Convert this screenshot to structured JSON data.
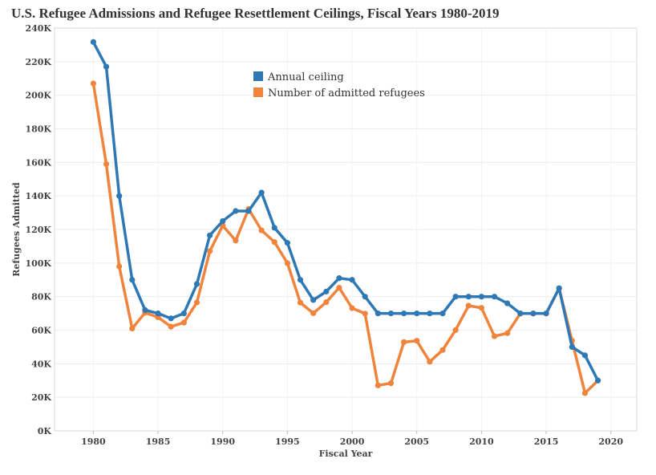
{
  "chart_data": {
    "type": "line",
    "title": "U.S. Refugee Admissions and Refugee Resettlement Ceilings, Fiscal Years 1980-2019",
    "xlabel": "Fiscal Year",
    "ylabel": "Refugees Admitted",
    "xlim": [
      1977,
      2022
    ],
    "ylim": [
      0,
      240000
    ],
    "x_ticks": [
      1980,
      1985,
      1990,
      1995,
      2000,
      2005,
      2010,
      2015,
      2020
    ],
    "x_tick_labels": [
      "1980",
      "1985",
      "1990",
      "1995",
      "2000",
      "2005",
      "2010",
      "2015",
      "2020"
    ],
    "y_ticks": [
      0,
      20000,
      40000,
      60000,
      80000,
      100000,
      120000,
      140000,
      160000,
      180000,
      200000,
      220000,
      240000
    ],
    "y_tick_labels": [
      "0K",
      "20K",
      "40K",
      "60K",
      "80K",
      "100K",
      "120K",
      "140K",
      "160K",
      "180K",
      "200K",
      "220K",
      "240K"
    ],
    "grid": true,
    "legend_position": "top-center",
    "x": [
      1980,
      1981,
      1982,
      1983,
      1984,
      1985,
      1986,
      1987,
      1988,
      1989,
      1990,
      1991,
      1992,
      1993,
      1994,
      1995,
      1996,
      1997,
      1998,
      1999,
      2000,
      2001,
      2002,
      2003,
      2004,
      2005,
      2006,
      2007,
      2008,
      2009,
      2010,
      2011,
      2012,
      2013,
      2014,
      2015,
      2016,
      2017,
      2018,
      2019
    ],
    "series": [
      {
        "name": "Annual ceiling",
        "color": "#2e78b5",
        "values": [
          231700,
          217000,
          140000,
          90000,
          72000,
          70000,
          67000,
          70000,
          87500,
          116500,
          125000,
          131000,
          131000,
          142000,
          121000,
          112000,
          90000,
          78000,
          83000,
          91000,
          90000,
          80000,
          70000,
          70000,
          70000,
          70000,
          70000,
          70000,
          80000,
          80000,
          80000,
          80000,
          76000,
          70000,
          70000,
          70000,
          85000,
          50000,
          45000,
          30000
        ]
      },
      {
        "name": "Number of admitted refugees",
        "color": "#f0843c",
        "values": [
          207000,
          159000,
          98000,
          61000,
          70400,
          67700,
          62100,
          64500,
          76500,
          107100,
          122300,
          113400,
          132200,
          119500,
          112500,
          99900,
          76400,
          70100,
          76700,
          85300,
          73100,
          69900,
          27100,
          28400,
          52900,
          53700,
          41200,
          48200,
          60100,
          74600,
          73300,
          56400,
          58200,
          69900,
          69900,
          69900,
          84900,
          53700,
          22500,
          30000
        ]
      }
    ]
  }
}
